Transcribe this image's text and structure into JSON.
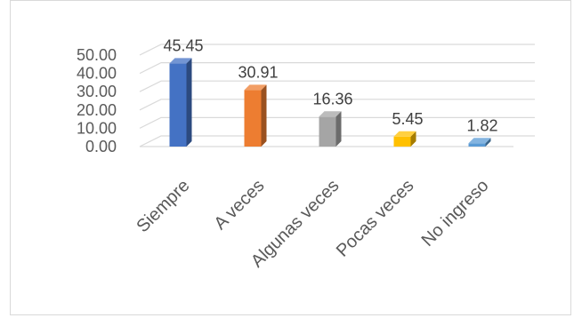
{
  "chart_data": {
    "type": "bar",
    "style": "3d-column",
    "categories": [
      "Siempre",
      "A veces",
      "Algunas veces",
      "Pocas veces",
      "No ingreso"
    ],
    "values": [
      45.45,
      30.91,
      16.36,
      5.45,
      1.82
    ],
    "value_labels": [
      "45.45",
      "30.91",
      "16.36",
      "5.45",
      "1.82"
    ],
    "colors": [
      "#4472C4",
      "#ED7D31",
      "#A5A5A5",
      "#FFC000",
      "#5B9BD5"
    ],
    "yticks": [
      "0.00",
      "10.00",
      "20.00",
      "30.00",
      "40.00",
      "50.00"
    ],
    "ylim": [
      0,
      50
    ],
    "grid": true,
    "legend": false
  }
}
